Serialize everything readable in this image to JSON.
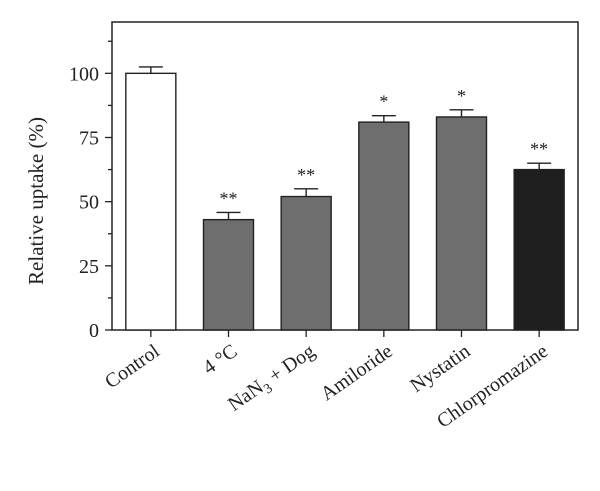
{
  "chart_data": {
    "type": "bar",
    "title": "",
    "xlabel": "",
    "ylabel": "Relative uptake (%)",
    "ylim": [
      0,
      120
    ],
    "yticks": [
      0,
      25,
      50,
      75,
      100
    ],
    "grid": false,
    "categories": [
      {
        "label": "Control",
        "sub": "",
        "tail": ""
      },
      {
        "label": "4 °C",
        "sub": "",
        "tail": ""
      },
      {
        "label": "NaN",
        "sub": "3",
        "tail": " + Dog"
      },
      {
        "label": "Amiloride",
        "sub": "",
        "tail": ""
      },
      {
        "label": "Nystatin",
        "sub": "",
        "tail": ""
      },
      {
        "label": "Chlorpromazine",
        "sub": "",
        "tail": ""
      }
    ],
    "values": [
      100,
      43,
      52,
      81,
      83,
      62.5
    ],
    "errors": [
      2.5,
      2.8,
      3.0,
      2.5,
      2.8,
      2.5
    ],
    "significance": [
      "",
      "**",
      "**",
      "*",
      "*",
      "**"
    ],
    "colors": [
      "#ffffff",
      "#6e6e6e",
      "#6e6e6e",
      "#6e6e6e",
      "#6e6e6e",
      "#1e1e1e"
    ]
  }
}
